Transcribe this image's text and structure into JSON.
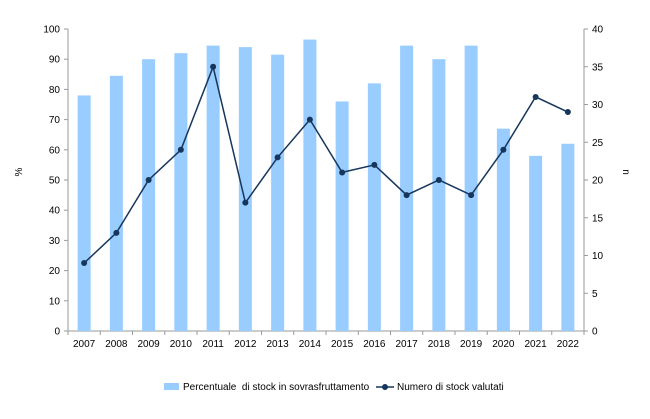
{
  "chart_data": {
    "type": "bar",
    "categories": [
      "2007",
      "2008",
      "2009",
      "2010",
      "2011",
      "2012",
      "2013",
      "2014",
      "2015",
      "2016",
      "2017",
      "2018",
      "2019",
      "2020",
      "2021",
      "2022"
    ],
    "series": [
      {
        "name": "Percentuale  di stock in sovrasfruttamento",
        "type": "bar",
        "axis": "left",
        "color": "#99CCFF",
        "values": [
          78,
          84.5,
          90,
          92,
          94.5,
          94,
          91.5,
          96.5,
          76,
          82,
          94.5,
          90,
          94.5,
          67,
          58,
          62
        ]
      },
      {
        "name": "Numero di stock valutati",
        "type": "line",
        "axis": "right",
        "color": "#16365C",
        "values": [
          9,
          13,
          20,
          24,
          35,
          17,
          23,
          28,
          21,
          22,
          18,
          20,
          18,
          24,
          31,
          29
        ]
      }
    ],
    "y_left": {
      "label": "%",
      "min": 0,
      "max": 100,
      "step": 10
    },
    "y_right": {
      "label": "n",
      "min": 0,
      "max": 40,
      "step": 5
    },
    "grid": false,
    "legend": "bottom-center"
  }
}
